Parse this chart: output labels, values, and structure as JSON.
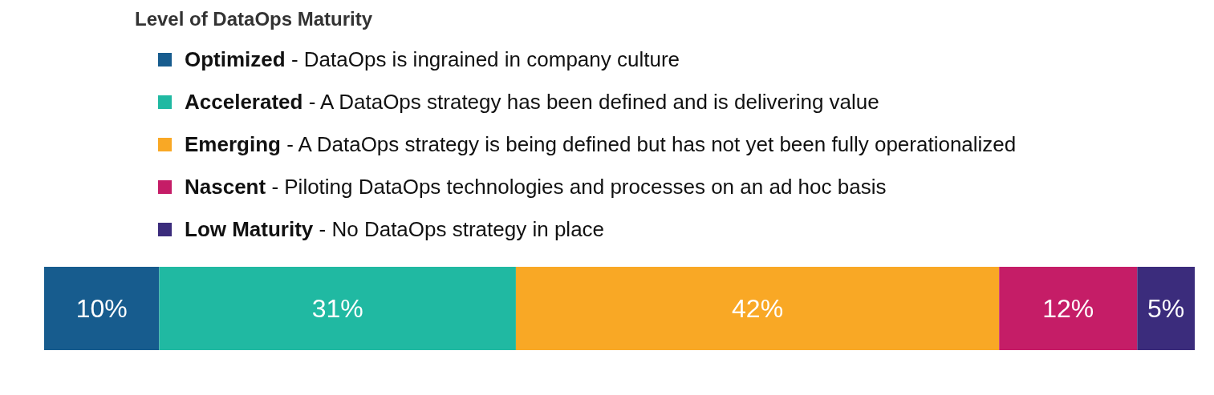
{
  "chart_data": {
    "type": "bar",
    "orientation": "horizontal",
    "stacked": true,
    "legend_title": "Level of DataOps Maturity",
    "legend": "top",
    "categories": [
      null
    ],
    "xlim": [
      0,
      100
    ],
    "tick_labels": false,
    "grid": false,
    "series": [
      {
        "name": "Optimized - DataOps is ingrained in company culture",
        "color": "#175c8e",
        "values": [
          10
        ],
        "value_labels": [
          "10%"
        ]
      },
      {
        "name": "Accelerated - A DataOps strategy has been defined and is delivering value",
        "color": "#20b9a2",
        "values": [
          31
        ],
        "value_labels": [
          "31%"
        ]
      },
      {
        "name": "Emerging - A DataOps strategy is being defined but has not yet been fully operationalized",
        "color": "#f9a825",
        "values": [
          42
        ],
        "value_labels": [
          "42%"
        ]
      },
      {
        "name": "Nascent - Piloting DataOps technologies and processes on an ad hoc basis",
        "color": "#c51d67",
        "values": [
          12
        ],
        "value_labels": [
          "12%"
        ]
      },
      {
        "name": "Low Maturity - No DataOps strategy in place",
        "color": "#3b2c7c",
        "values": [
          5
        ],
        "value_labels": [
          "5%"
        ]
      }
    ]
  }
}
